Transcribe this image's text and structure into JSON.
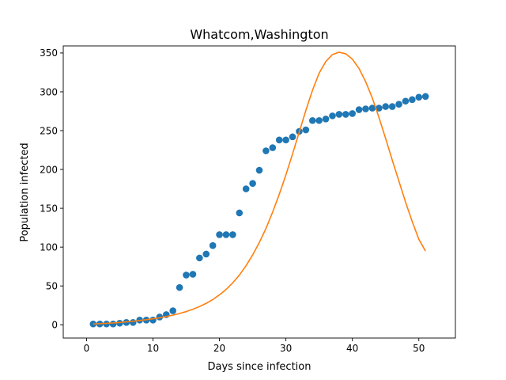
{
  "chart_data": {
    "type": "scatter",
    "title": "Whatcom,Washington",
    "xlabel": "Days since infection",
    "ylabel": "Population infected",
    "xlim": [
      -3.5,
      55.5
    ],
    "ylim": [
      -17.1,
      359.1
    ],
    "xticks": [
      0,
      10,
      20,
      30,
      40,
      50
    ],
    "yticks": [
      0,
      50,
      100,
      150,
      200,
      250,
      300,
      350
    ],
    "grid": false,
    "legend": "none",
    "series": [
      {
        "kind": "scatter",
        "color": "#1f77b4",
        "x": [
          1,
          2,
          3,
          4,
          5,
          6,
          7,
          8,
          9,
          10,
          11,
          12,
          13,
          14,
          15,
          16,
          17,
          18,
          19,
          20,
          21,
          22,
          23,
          24,
          25,
          26,
          27,
          28,
          29,
          30,
          31,
          32,
          33,
          34,
          35,
          36,
          37,
          38,
          39,
          40,
          41,
          42,
          43,
          44,
          45,
          46,
          47,
          48,
          49,
          50,
          51
        ],
        "y": [
          1,
          1,
          1,
          1,
          2,
          3,
          3,
          6,
          6,
          6,
          10,
          13,
          18,
          48,
          64,
          65,
          86,
          91,
          102,
          116,
          116,
          116,
          144,
          175,
          182,
          199,
          224,
          228,
          238,
          238,
          242,
          249,
          251,
          263,
          263,
          265,
          269,
          271,
          271,
          272,
          277,
          278,
          279,
          279,
          281,
          281,
          284,
          288,
          290,
          293,
          294
        ]
      },
      {
        "kind": "line",
        "color": "#ff7f0e",
        "x": [
          1,
          2,
          3,
          4,
          5,
          6,
          7,
          8,
          9,
          10,
          11,
          12,
          13,
          14,
          15,
          16,
          17,
          18,
          19,
          20,
          21,
          22,
          23,
          24,
          25,
          26,
          27,
          28,
          29,
          30,
          31,
          32,
          33,
          34,
          35,
          36,
          37,
          38,
          39,
          40,
          41,
          42,
          43,
          44,
          45,
          46,
          47,
          48,
          49,
          50,
          51
        ],
        "y": [
          1,
          1.4,
          1.8,
          2.3,
          3,
          3.7,
          4.5,
          5.5,
          6.5,
          7.7,
          9,
          10.6,
          12.4,
          14.5,
          17,
          20,
          23.5,
          27.5,
          32.5,
          38.5,
          45.5,
          54,
          64,
          76,
          90,
          106,
          124,
          145,
          168,
          193,
          220,
          248,
          276,
          302,
          324,
          339,
          348,
          351,
          349,
          342,
          330,
          313,
          292,
          267,
          240,
          212,
          185,
          158,
          133,
          110,
          95
        ]
      }
    ]
  }
}
